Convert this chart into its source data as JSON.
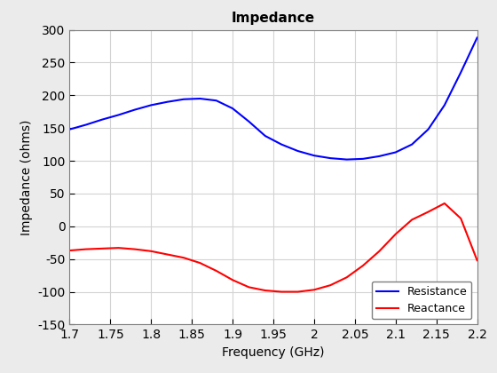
{
  "title": "Impedance",
  "xlabel": "Frequency (GHz)",
  "ylabel": "Impedance (ohms)",
  "xlim": [
    1.7,
    2.2
  ],
  "ylim": [
    -150,
    300
  ],
  "xticks": [
    1.7,
    1.75,
    1.8,
    1.85,
    1.9,
    1.95,
    2.0,
    2.05,
    2.1,
    2.15,
    2.2
  ],
  "yticks": [
    -150,
    -100,
    -50,
    0,
    50,
    100,
    150,
    200,
    250,
    300
  ],
  "resistance_color": "#0000FF",
  "reactance_color": "#FF0000",
  "line_width": 1.5,
  "legend_labels": [
    "Resistance",
    "Reactance"
  ],
  "legend_loc": "lower right",
  "fig_background_color": "#EBEBEB",
  "axes_background": "#FFFFFF",
  "grid_color": "#D3D3D3",
  "freq_points": [
    1.7,
    1.72,
    1.74,
    1.76,
    1.78,
    1.8,
    1.82,
    1.84,
    1.86,
    1.88,
    1.9,
    1.92,
    1.94,
    1.96,
    1.98,
    2.0,
    2.02,
    2.04,
    2.06,
    2.08,
    2.1,
    2.12,
    2.14,
    2.16,
    2.18,
    2.2
  ],
  "resistance_values": [
    148,
    155,
    163,
    170,
    178,
    185,
    190,
    194,
    195,
    192,
    180,
    160,
    138,
    125,
    115,
    108,
    104,
    102,
    103,
    107,
    113,
    125,
    148,
    185,
    235,
    288
  ],
  "reactance_values": [
    -37,
    -35,
    -34,
    -33,
    -35,
    -38,
    -43,
    -48,
    -56,
    -68,
    -82,
    -93,
    -98,
    -100,
    -100,
    -97,
    -90,
    -78,
    -60,
    -38,
    -12,
    10,
    22,
    35,
    12,
    -52
  ],
  "title_fontsize": 11,
  "label_fontsize": 10,
  "tick_fontsize": 10
}
